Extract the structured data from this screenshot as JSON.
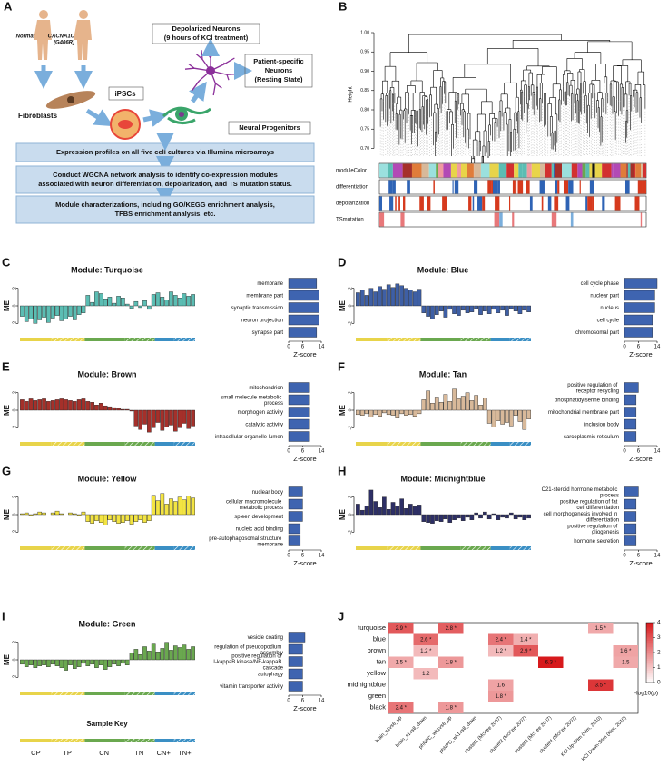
{
  "panel_a": {
    "label": "A",
    "normal": "Normal",
    "mutant": [
      "CACNA1C",
      "(G406R)"
    ],
    "fibroblasts": "Fibroblasts",
    "ipscs": "iPSCs",
    "progenitors": "Neural Progenitors",
    "depolarized": [
      "Depolarized Neurons",
      "(9 hours of KCl treatment)"
    ],
    "patient": [
      "Patient-specific",
      "Neurons",
      "(Resting State)"
    ],
    "steps": [
      [
        "Expression profiles on all five cell cultures via Illumina microarrays"
      ],
      [
        "Conduct WGCNA network analysis to identify co-expression modules",
        "associated with neuron differentiation, depolarization, and TS mutation status."
      ],
      [
        "Module characterizations, including GO/KEGG enrichment analysis,",
        "TFBS enrichment analysis, etc."
      ]
    ]
  },
  "sample_key": {
    "title": "Sample Key",
    "labels": [
      "CP",
      "TP",
      "CN",
      "TN",
      "CN+",
      "TN+"
    ]
  },
  "chart_data": [
    {
      "type": "dendrogram",
      "panel": "B",
      "ylabel": "Height",
      "ylim": [
        0.68,
        1.0
      ],
      "yticks": [
        {
          "value": 0.7,
          "label": "0.70"
        },
        {
          "value": 0.75,
          "label": "0.75"
        },
        {
          "value": 0.8,
          "label": "0.80"
        },
        {
          "value": 0.85,
          "label": "0.85"
        },
        {
          "value": 0.9,
          "label": "0.90"
        },
        {
          "value": 0.95,
          "label": "0.95"
        },
        {
          "value": 1.0,
          "label": "1.00"
        }
      ],
      "tracks": [
        "moduleColor",
        "differentiation",
        "depolarization",
        "TSmutation"
      ]
    },
    {
      "type": "bar",
      "panel": "C",
      "title": "Module: Turquoise",
      "ylabel": "ME",
      "color": "#5bbdb3",
      "ylim": [
        -3,
        3
      ],
      "yticks": [
        -2,
        0,
        2
      ],
      "values": [
        -1.2,
        -1.8,
        -1.5,
        -2.0,
        -1.6,
        -1.3,
        -1.9,
        -1.4,
        -1.1,
        -1.7,
        -1.5,
        -1.2,
        -1.6,
        -1.0,
        -0.8,
        1.2,
        0.4,
        1.6,
        1.4,
        0.8,
        1.0,
        0.3,
        1.1,
        0.9,
        0.2,
        -0.3,
        0.5,
        -0.2,
        0.6,
        -0.4,
        1.3,
        1.5,
        1.0,
        0.7,
        1.6,
        1.2,
        0.9,
        1.4,
        1.1,
        1.3
      ],
      "terms": [
        "membrane",
        "membrane part",
        "synaptic transmission",
        "neuron projection",
        "synapse part"
      ],
      "zscores": [
        12,
        13,
        13,
        13,
        12
      ],
      "zcolor": "#3e64b0",
      "xlabel": "Z-score",
      "xlim": [
        0,
        14
      ],
      "xticks": [
        0,
        6,
        14
      ]
    },
    {
      "type": "bar",
      "panel": "D",
      "title": "Module: Blue",
      "ylabel": "ME",
      "color": "#3e5fa5",
      "ylim": [
        -3,
        3
      ],
      "yticks": [
        -2,
        0,
        2
      ],
      "values": [
        1.5,
        1.8,
        1.2,
        2.0,
        1.6,
        2.2,
        1.9,
        2.4,
        2.1,
        2.5,
        2.3,
        2.0,
        1.8,
        1.6,
        1.9,
        -0.8,
        -1.2,
        -1.5,
        -1.0,
        -0.6,
        -1.3,
        -0.4,
        -0.9,
        -1.1,
        -0.5,
        -0.8,
        -0.7,
        -0.3,
        -1.0,
        -0.6,
        -0.9,
        -0.4,
        -0.8,
        -0.5,
        -1.1,
        -0.3,
        -0.6,
        -0.9,
        -0.5,
        -0.7
      ],
      "terms": [
        "cell cycle phase",
        "nuclear part",
        "nucleus",
        "cell cycle",
        "chromosomal part"
      ],
      "zscores": [
        14,
        13,
        13,
        12,
        12
      ],
      "zcolor": "#3e64b0",
      "xlabel": "Z-score",
      "xlim": [
        0,
        14
      ],
      "xticks": [
        0,
        6,
        14
      ]
    },
    {
      "type": "bar",
      "panel": "E",
      "title": "Module: Brown",
      "ylabel": "ME",
      "color": "#a5302a",
      "ylim": [
        -3,
        3
      ],
      "yticks": [
        -2,
        0,
        2
      ],
      "values": [
        1.2,
        1.0,
        1.3,
        1.1,
        1.2,
        1.3,
        1.0,
        1.1,
        1.2,
        1.3,
        1.2,
        1.1,
        1.0,
        1.2,
        1.3,
        1.0,
        0.9,
        0.6,
        0.8,
        0.5,
        0.4,
        0.3,
        0.2,
        0.1,
        0.1,
        -0.1,
        -1.8,
        -2.2,
        -1.6,
        -2.5,
        -2.0,
        -1.4,
        -2.3,
        -1.9,
        -1.7,
        -2.4,
        -2.0,
        -1.5,
        -2.1,
        -1.8
      ],
      "terms": [
        "mitochondrion",
        "small molecule metabolic process",
        "morphogen activity",
        "catalytic activity",
        "intracellular organelle lumen"
      ],
      "zscores": [
        9,
        9,
        9,
        9,
        9
      ],
      "zcolor": "#3e64b0",
      "xlabel": "Z-score",
      "xlim": [
        0,
        14
      ],
      "xticks": [
        0,
        6,
        14
      ]
    },
    {
      "type": "bar",
      "panel": "F",
      "title": "Module: Tan",
      "ylabel": "ME",
      "color": "#d8b99a",
      "ylim": [
        -3,
        3
      ],
      "yticks": [
        -2,
        0,
        2
      ],
      "values": [
        -0.5,
        -0.6,
        -0.4,
        -0.8,
        -0.5,
        -0.7,
        -0.3,
        -0.5,
        -0.6,
        -0.9,
        -0.4,
        -0.6,
        -0.5,
        -0.7,
        -0.4,
        1.2,
        2.2,
        0.8,
        1.5,
        0.9,
        1.8,
        1.0,
        2.4,
        1.3,
        1.6,
        2.0,
        1.1,
        1.7,
        0.6,
        1.4,
        -1.5,
        -1.9,
        -1.2,
        -1.6,
        -1.4,
        -1.8,
        -0.6,
        -1.3,
        -2.2,
        -1.0
      ],
      "terms": [
        "positive regulation of receptor recycling",
        "phosphatidylserine binding",
        "mitochondrial membrane part",
        "inclusion body",
        "sarcoplasmic reticulum"
      ],
      "zscores": [
        6,
        5,
        5,
        5,
        5
      ],
      "zcolor": "#3e64b0",
      "xlabel": "Z-score",
      "xlim": [
        0,
        14
      ],
      "xticks": [
        0,
        6,
        14
      ]
    },
    {
      "type": "bar",
      "panel": "G",
      "title": "Module: Yellow",
      "ylabel": "ME",
      "color": "#f3e442",
      "ylim": [
        -3,
        3
      ],
      "yticks": [
        -2,
        0,
        2
      ],
      "values": [
        0.1,
        0.2,
        -0.1,
        0.1,
        0.3,
        0.2,
        0.0,
        0.2,
        0.4,
        0.1,
        0.0,
        0.2,
        0.1,
        -0.1,
        0.3,
        -0.8,
        -1.0,
        -0.7,
        -0.9,
        -1.2,
        -0.6,
        -0.8,
        -1.0,
        -0.9,
        -0.7,
        -1.1,
        -0.8,
        -0.6,
        -0.9,
        -0.7,
        2.2,
        1.6,
        2.4,
        1.2,
        1.8,
        1.5,
        2.0,
        1.7,
        2.1,
        1.9
      ],
      "terms": [
        "nuclear body",
        "cellular macromolecule metabolic process",
        "spleen development",
        "nucleic acid binding",
        "pre-autophagosomal structure membrane"
      ],
      "zscores": [
        6,
        6,
        6,
        5,
        5
      ],
      "zcolor": "#3e64b0",
      "xlabel": "Z-score",
      "xlim": [
        0,
        14
      ],
      "xticks": [
        0,
        6,
        14
      ]
    },
    {
      "type": "bar",
      "panel": "H",
      "title": "Module: Midnightblue",
      "ylabel": "ME",
      "color": "#2d2f66",
      "ylim": [
        -3,
        3
      ],
      "yticks": [
        -2,
        0,
        2
      ],
      "values": [
        1.2,
        0.5,
        1.0,
        2.8,
        1.5,
        0.8,
        2.0,
        0.6,
        1.4,
        1.0,
        1.8,
        0.7,
        1.2,
        0.9,
        1.1,
        -0.8,
        -0.9,
        -1.0,
        -0.7,
        -0.8,
        -0.5,
        -0.9,
        -0.6,
        -0.4,
        -0.7,
        -0.3,
        -0.6,
        0.2,
        -0.4,
        0.3,
        -0.5,
        0.1,
        -0.6,
        -0.3,
        -0.4,
        0.2,
        -0.5,
        -0.3,
        -0.6,
        -0.4
      ],
      "terms": [
        "C21-steroid hormone metabolic process",
        "positive regulation of fat cell differentiation",
        "cell morphogenesis involved in differentiation",
        "positive regulation of gliogenesis",
        "hormone secretion"
      ],
      "zscores": [
        6,
        5,
        5,
        5,
        5
      ],
      "zcolor": "#3e64b0",
      "xlabel": "Z-score",
      "xlim": [
        0,
        14
      ],
      "xticks": [
        0,
        6,
        14
      ]
    },
    {
      "type": "bar",
      "panel": "I",
      "title": "Module: Green",
      "ylabel": "ME",
      "color": "#6aa84f",
      "ylim": [
        -3,
        3
      ],
      "yticks": [
        -2,
        0,
        2
      ],
      "values": [
        -0.5,
        -0.8,
        -0.6,
        -0.9,
        -0.7,
        -0.6,
        -0.8,
        -0.5,
        -0.7,
        -0.9,
        -1.2,
        -0.6,
        -1.0,
        -0.8,
        -0.4,
        -0.7,
        -0.5,
        -0.9,
        -0.6,
        -1.1,
        -0.8,
        -0.5,
        -0.7,
        -0.4,
        -0.6,
        0.8,
        1.2,
        0.6,
        1.5,
        1.0,
        1.8,
        0.9,
        1.3,
        2.0,
        1.1,
        1.6,
        1.4,
        1.7,
        1.2,
        1.5
      ],
      "terms": [
        "vesicle coating",
        "regulation of pseudopodium assembly",
        "positive regulation of I-kappaB kinase/NF-kappaB cascade",
        "autophagy",
        "vitamin transporter activity"
      ],
      "zscores": [
        7,
        6,
        6,
        6,
        6
      ],
      "zcolor": "#3e64b0",
      "xlabel": "Z-score",
      "xlim": [
        0,
        14
      ],
      "xticks": [
        0,
        6,
        14
      ]
    },
    {
      "type": "heatmap",
      "panel": "J",
      "rows": [
        "turquoise",
        "blue",
        "brown",
        "tan",
        "yellow",
        "midnightblue",
        "green",
        "black"
      ],
      "columns": [
        "brain_s1vs8_up",
        "brain_s1vs8_down",
        "phNPC_wk1vs8_up",
        "phNPC_wk1vs8_down",
        "cluster1 (McKee 2007)",
        "cluster2 (McKee 2007)",
        "cluster3 (McKee 2007)",
        "cluster4 (McKee 2007)",
        "KCl Up-Stim (Kim, 2010)",
        "KCl Down-Stim (Kim, 2010)"
      ],
      "values": [
        [
          2.9,
          null,
          2.8,
          null,
          null,
          null,
          null,
          null,
          1.5,
          null
        ],
        [
          null,
          2.6,
          null,
          null,
          2.4,
          1.4,
          null,
          null,
          null,
          null
        ],
        [
          null,
          1.2,
          null,
          null,
          1.2,
          2.9,
          null,
          null,
          null,
          1.6
        ],
        [
          1.5,
          null,
          1.8,
          null,
          null,
          null,
          6.3,
          null,
          null,
          1.5
        ],
        [
          null,
          1.2,
          null,
          null,
          null,
          null,
          null,
          null,
          null,
          null
        ],
        [
          null,
          null,
          null,
          null,
          1.6,
          null,
          null,
          null,
          3.5,
          null
        ],
        [
          null,
          null,
          null,
          null,
          1.8,
          null,
          null,
          null,
          null,
          null
        ],
        [
          2.4,
          null,
          1.8,
          null,
          null,
          null,
          null,
          null,
          null,
          null
        ]
      ],
      "value_labels": [
        [
          "2.9 *",
          null,
          "2.8 *",
          null,
          null,
          null,
          null,
          null,
          "1.5 *",
          null
        ],
        [
          null,
          "2.6 *",
          null,
          null,
          "2.4 *",
          "1.4 *",
          null,
          null,
          null,
          null
        ],
        [
          null,
          "1.2 *",
          null,
          null,
          "1.2 *",
          "2.9 *",
          null,
          null,
          null,
          "1.6 *"
        ],
        [
          "1.5 *",
          null,
          "1.8 *",
          null,
          null,
          null,
          "6.3 *",
          null,
          null,
          "1.5"
        ],
        [
          null,
          "1.2",
          null,
          null,
          null,
          null,
          null,
          null,
          null,
          null
        ],
        [
          null,
          null,
          null,
          null,
          "1.6",
          null,
          null,
          null,
          "3.5 *",
          null
        ],
        [
          null,
          null,
          null,
          null,
          "1.8 *",
          null,
          null,
          null,
          null,
          null
        ],
        [
          "2.4 *",
          null,
          "1.8 *",
          null,
          null,
          null,
          null,
          null,
          null,
          null
        ]
      ],
      "colorbar_label": "-log10(p)",
      "clim": [
        0,
        4
      ],
      "cticks": [
        0,
        1,
        2,
        3,
        4
      ],
      "color": "#d7191c"
    }
  ]
}
